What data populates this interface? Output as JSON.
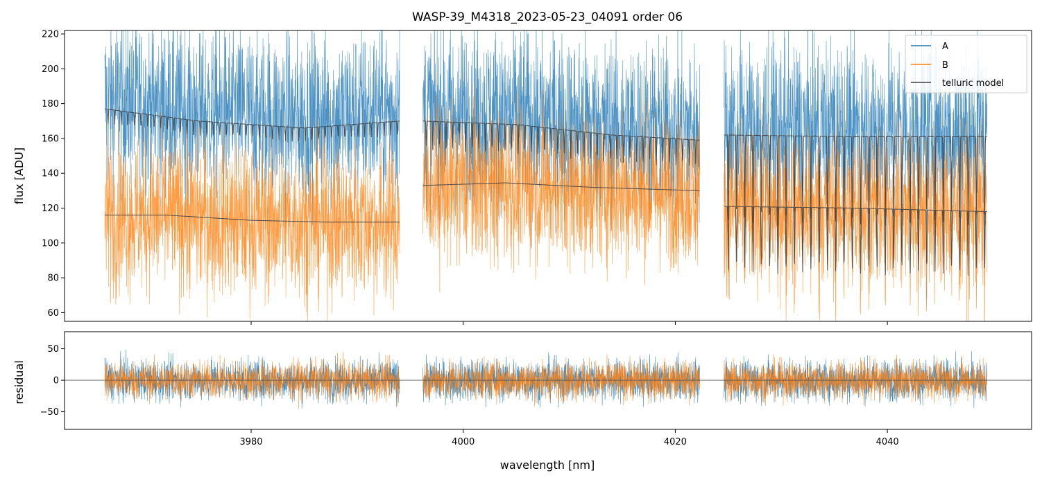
{
  "chart_data": {
    "type": "line",
    "title": "WASP-39_M4318_2023-05-23_04091  order 06",
    "xlabel": "wavelength [nm]",
    "xlim": [
      3962.4,
      4053.6
    ],
    "x_ticks": [
      3980,
      4000,
      4020,
      4040
    ],
    "x_tick_labels": [
      "3980",
      "4000",
      "4020",
      "4040"
    ],
    "segments": [
      [
        3966.2,
        3994.0
      ],
      [
        3996.2,
        4022.3
      ],
      [
        4024.6,
        4049.4
      ]
    ],
    "panels": [
      {
        "id": "flux",
        "ylabel": "flux [ADU]",
        "ylim": [
          55,
          222
        ],
        "y_ticks": [
          60,
          80,
          100,
          120,
          140,
          160,
          180,
          200,
          220
        ],
        "y_tick_labels": [
          "60",
          "80",
          "100",
          "120",
          "140",
          "160",
          "180",
          "200",
          "220"
        ],
        "series": [
          {
            "name": "A",
            "color": "#1f77b4",
            "kind": "noisy-spectrum",
            "level_per_segment": [
              178,
              176,
              185
            ],
            "noise_amplitude": 45
          },
          {
            "name": "B",
            "color": "#ff7f0e",
            "kind": "noisy-spectrum",
            "level_per_segment": [
              116,
              135,
              120
            ],
            "noise_amplitude": 40
          },
          {
            "name": "telluric model",
            "color": "#404040",
            "kind": "model",
            "A_continuum": [
              [
                3966.2,
                177
              ],
              [
                3975,
                170
              ],
              [
                3985,
                166
              ],
              [
                3994,
                170
              ],
              [
                3996.2,
                170
              ],
              [
                4005,
                168
              ],
              [
                4014,
                162
              ],
              [
                4022.3,
                159
              ],
              [
                4024.6,
                162
              ],
              [
                4037,
                161
              ],
              [
                4049.4,
                161
              ]
            ],
            "B_continuum": [
              [
                3966.2,
                116
              ],
              [
                3972,
                116
              ],
              [
                3980,
                113
              ],
              [
                3987,
                112
              ],
              [
                3994,
                112
              ],
              [
                3996.2,
                133
              ],
              [
                4004,
                134.5
              ],
              [
                4012,
                132
              ],
              [
                4022.3,
                130
              ],
              [
                4024.6,
                121
              ],
              [
                4037,
                120
              ],
              [
                4049.4,
                118
              ]
            ]
          }
        ],
        "legend": {
          "location": "top-right",
          "entries": [
            "A",
            "B",
            "telluric model"
          ]
        }
      },
      {
        "id": "residual",
        "ylabel": "residual",
        "ylim": [
          -78,
          77
        ],
        "y_ticks": [
          -50,
          0,
          50
        ],
        "y_tick_labels": [
          "−50",
          "0",
          "50"
        ],
        "zero_line": true,
        "series": [
          {
            "name": "A",
            "color": "#1f77b4",
            "kind": "residual",
            "noise_amplitude": 30
          },
          {
            "name": "B",
            "color": "#ff7f0e",
            "kind": "residual",
            "noise_amplitude": 28
          }
        ]
      }
    ]
  }
}
